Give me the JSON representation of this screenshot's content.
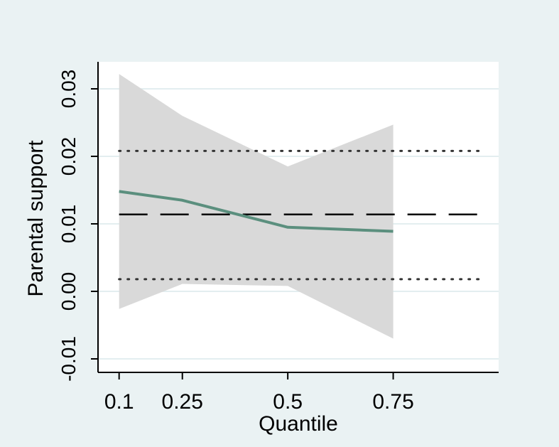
{
  "chart_data": {
    "type": "line",
    "xlabel": "Quantile",
    "ylabel": "Parental support",
    "x_ticks": [
      0.1,
      0.25,
      0.5,
      0.75
    ],
    "x_tick_labels": [
      "0.1",
      "0.25",
      "0.5",
      "0.75"
    ],
    "y_ticks": [
      -0.01,
      0.0,
      0.01,
      0.02,
      0.03
    ],
    "y_tick_labels": [
      "-0.01",
      "0.00",
      "0.01",
      "0.02",
      "0.03"
    ],
    "xlim": [
      0.05,
      1.0
    ],
    "ylim": [
      -0.012,
      0.034
    ],
    "grid": true,
    "legend": "none",
    "series": [
      {
        "role": "quantile estimate",
        "style": "solid",
        "color": "#5b8f7e",
        "x": [
          0.1,
          0.25,
          0.5,
          0.75
        ],
        "y": [
          0.0148,
          0.0135,
          0.0095,
          0.0089
        ]
      }
    ],
    "band": {
      "role": "confidence interval",
      "color": "#d9d9d9",
      "x": [
        0.1,
        0.25,
        0.5,
        0.75
      ],
      "lower": [
        -0.0026,
        0.0011,
        0.0008,
        -0.007
      ],
      "upper": [
        0.0322,
        0.026,
        0.0185,
        0.0247
      ]
    },
    "reference_lines": [
      {
        "role": "OLS estimate",
        "style": "dashed",
        "y": 0.0114,
        "color": "#000000"
      },
      {
        "role": "OLS upper bound",
        "style": "dotted",
        "y": 0.0208,
        "color": "#333333"
      },
      {
        "role": "OLS lower bound",
        "style": "dotted",
        "y": 0.0018,
        "color": "#333333"
      }
    ],
    "colors": {
      "outer_background": "#eaf2f3",
      "plot_background": "#ffffff",
      "grid": "#e3eef0",
      "estimate": "#5b8f7e",
      "band": "#d9d9d9"
    }
  }
}
